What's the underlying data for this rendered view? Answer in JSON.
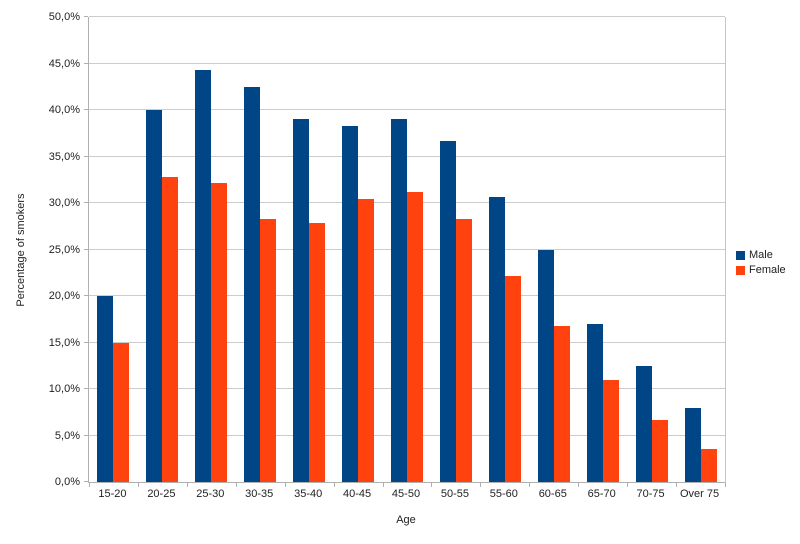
{
  "chart_data": {
    "type": "bar",
    "title": "",
    "xlabel": "Age",
    "ylabel": "Percentage of smokers",
    "categories": [
      "15-20",
      "20-25",
      "25-30",
      "30-35",
      "35-40",
      "40-45",
      "45-50",
      "50-55",
      "55-60",
      "60-65",
      "65-70",
      "70-75",
      "Over 75"
    ],
    "series": [
      {
        "name": "Male",
        "color": "#004586",
        "values": [
          20.0,
          40.0,
          44.3,
          42.5,
          39.0,
          38.3,
          39.0,
          36.7,
          30.7,
          24.9,
          17.0,
          12.5,
          8.0
        ]
      },
      {
        "name": "Female",
        "color": "#FF420E",
        "values": [
          15.0,
          32.8,
          32.2,
          28.3,
          27.9,
          30.4,
          31.2,
          28.3,
          22.2,
          16.8,
          11.0,
          6.7,
          3.6
        ]
      }
    ],
    "ylim": [
      0,
      50
    ],
    "ytick_step": 5,
    "ytick_labels": [
      "0,0%",
      "5,0%",
      "10,0%",
      "15,0%",
      "20,0%",
      "25,0%",
      "30,0%",
      "35,0%",
      "40,0%",
      "45,0%",
      "50,0%"
    ],
    "grid": true,
    "legend_position": "right",
    "colors": {
      "gridline": "#cccccc",
      "axis": "#b0b0b0",
      "text": "#222222",
      "background": "#ffffff"
    }
  }
}
